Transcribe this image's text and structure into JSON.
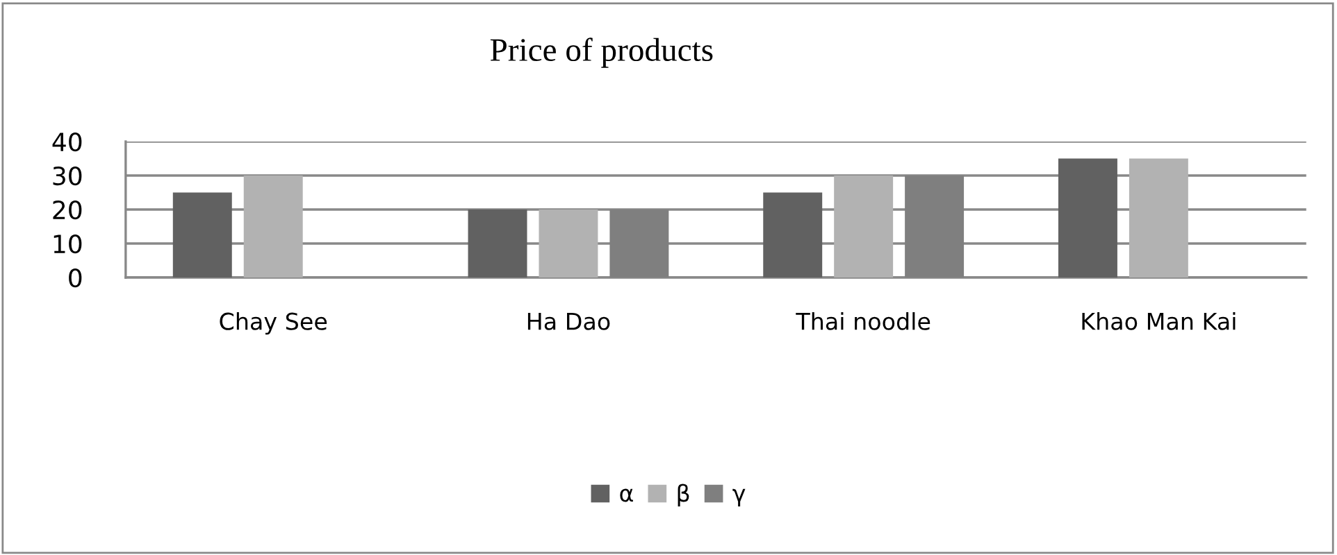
{
  "chart_data": {
    "type": "bar",
    "title": "Price of products",
    "categories": [
      "Chay See",
      "Ha Dao",
      "Thai noodle",
      "Khao Man Kai"
    ],
    "series": [
      {
        "name": "α",
        "color": "#616161",
        "values": [
          25,
          20,
          25,
          35
        ]
      },
      {
        "name": "β",
        "color": "#b2b2b2",
        "values": [
          30,
          20,
          30,
          35
        ]
      },
      {
        "name": "γ",
        "color": "#7f7f7f",
        "values": [
          null,
          20,
          30,
          null
        ]
      }
    ],
    "ylim": [
      0,
      40
    ],
    "yticks": [
      0,
      10,
      20,
      30,
      40
    ],
    "grid": "y",
    "legend": "bottom"
  }
}
